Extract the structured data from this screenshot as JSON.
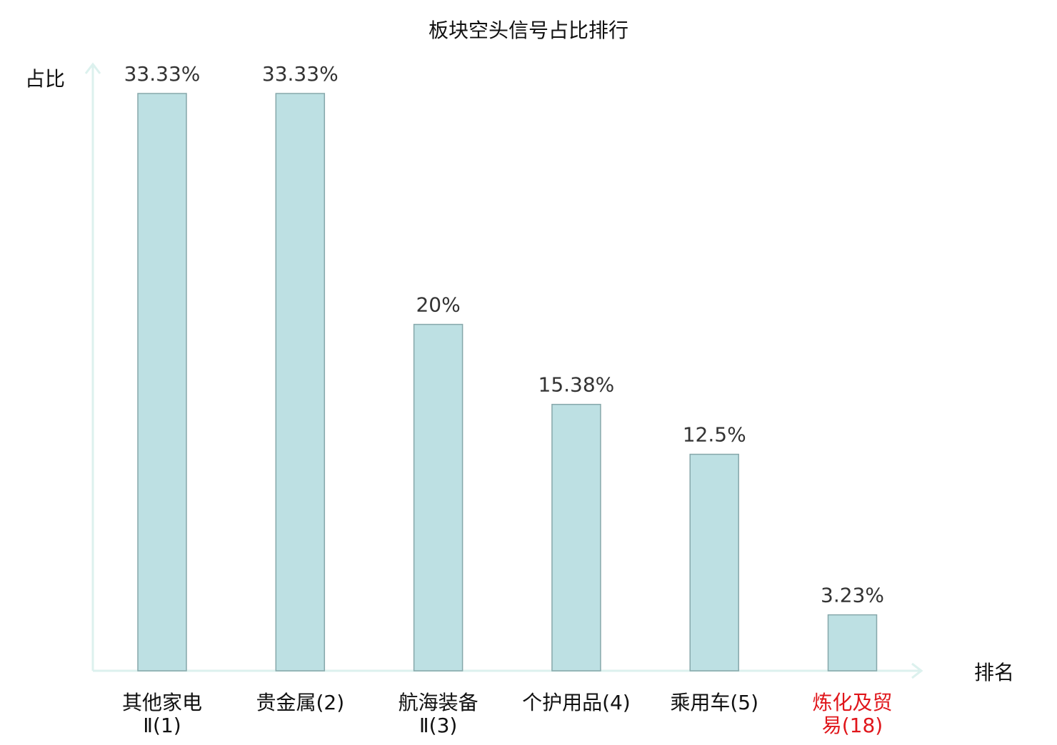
{
  "chart_data": {
    "type": "bar",
    "title": "板块空头信号占比排行",
    "ylabel": "占比",
    "xlabel": "排名",
    "ylim": [
      0,
      35
    ],
    "grid": false,
    "legend": "none",
    "colors": {
      "bar_fill": "#bde0e3",
      "bar_stroke": "#86a7aa",
      "axis": "#dcf1ee",
      "text": "#333333",
      "highlight_label": "#e0161b"
    },
    "categories": [
      {
        "line1": "其他家电",
        "line2": "Ⅱ(1)",
        "highlight": false
      },
      {
        "line1": "贵金属(2)",
        "line2": "",
        "highlight": false
      },
      {
        "line1": "航海装备",
        "line2": "Ⅱ(3)",
        "highlight": false
      },
      {
        "line1": "个护用品(4)",
        "line2": "",
        "highlight": false
      },
      {
        "line1": "乘用车(5)",
        "line2": "",
        "highlight": false
      },
      {
        "line1": "炼化及贸",
        "line2": "易(18)",
        "highlight": true
      }
    ],
    "values": [
      33.33,
      33.33,
      20,
      15.38,
      12.5,
      3.23
    ],
    "value_labels": [
      "33.33%",
      "33.33%",
      "20%",
      "15.38%",
      "12.5%",
      "3.23%"
    ]
  }
}
